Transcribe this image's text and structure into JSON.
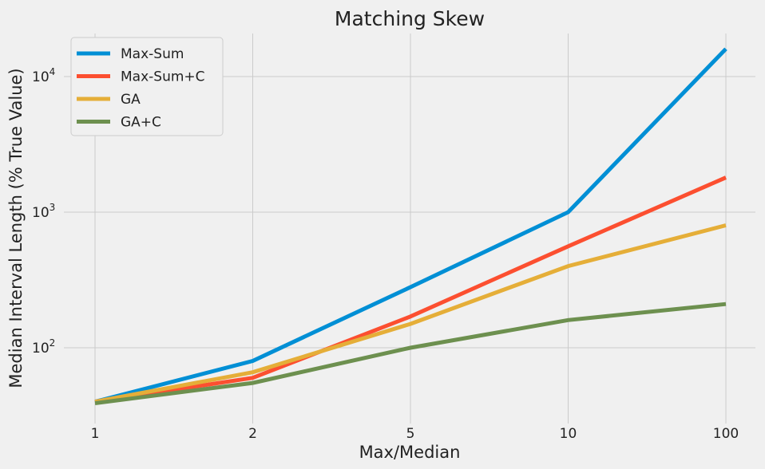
{
  "chart_data": {
    "type": "line",
    "title": "Matching Skew",
    "xlabel": "Max/Median",
    "ylabel": "Median Interval Length (% True Value)",
    "yscale": "log",
    "ylim": [
      33,
      20000
    ],
    "categories": [
      "1",
      "2",
      "5",
      "10",
      "100"
    ],
    "yticks": [
      {
        "value": 100,
        "base": "10",
        "exp": "2"
      },
      {
        "value": 1000,
        "base": "10",
        "exp": "3"
      },
      {
        "value": 10000,
        "base": "10",
        "exp": "4"
      }
    ],
    "grid": true,
    "legend": "top-left",
    "series": [
      {
        "name": "Max-Sum",
        "color": "#008fd5",
        "values": [
          40,
          80,
          280,
          1000,
          16000
        ]
      },
      {
        "name": "Max-Sum+C",
        "color": "#fc4f30",
        "values": [
          40,
          60,
          170,
          560,
          1800
        ]
      },
      {
        "name": "GA",
        "color": "#e5ae38",
        "values": [
          40,
          66,
          150,
          400,
          800
        ]
      },
      {
        "name": "GA+C",
        "color": "#6d904f",
        "values": [
          39,
          55,
          100,
          160,
          210
        ]
      }
    ]
  }
}
